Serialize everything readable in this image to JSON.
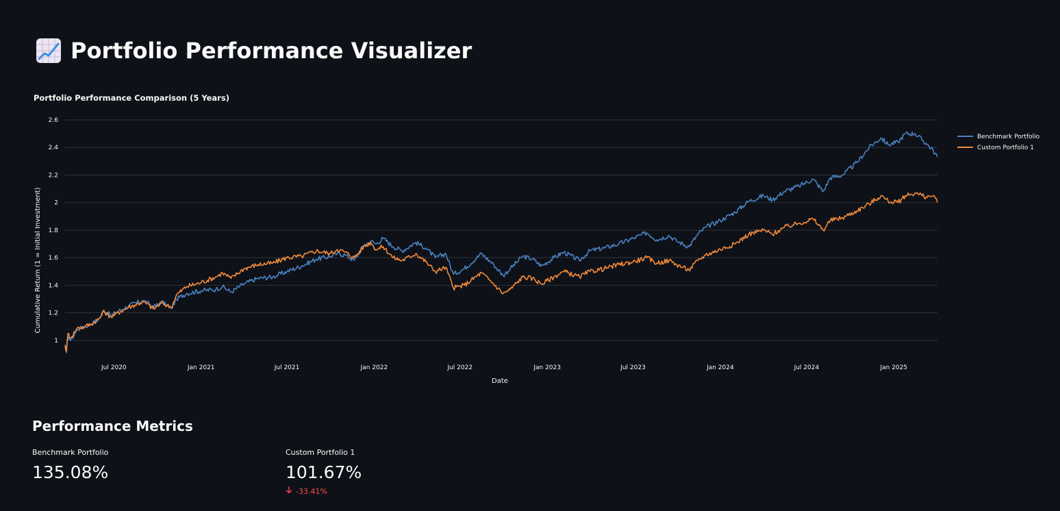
{
  "header": {
    "icon": "chart-increasing-icon",
    "title": "Portfolio Performance Visualizer"
  },
  "chart_data": {
    "type": "line",
    "title": "Portfolio Performance Comparison (5 Years)",
    "xlabel": "Date",
    "ylabel": "Cumulative Return (1 = Initial Investment)",
    "ylim": [
      0.9,
      2.6
    ],
    "xlim": [
      "2020-03-20",
      "2025-04-03"
    ],
    "yticks": [
      1,
      1.2,
      1.4,
      1.6,
      1.8,
      2,
      2.2,
      2.4,
      2.6
    ],
    "xticks": [
      {
        "date": "2020-07-01",
        "label": "Jul 2020"
      },
      {
        "date": "2021-01-01",
        "label": "Jan 2021"
      },
      {
        "date": "2021-07-01",
        "label": "Jul 2021"
      },
      {
        "date": "2022-01-01",
        "label": "Jan 2022"
      },
      {
        "date": "2022-07-01",
        "label": "Jul 2022"
      },
      {
        "date": "2023-01-01",
        "label": "Jan 2023"
      },
      {
        "date": "2023-07-01",
        "label": "Jul 2023"
      },
      {
        "date": "2024-01-01",
        "label": "Jan 2024"
      },
      {
        "date": "2024-07-01",
        "label": "Jul 2024"
      },
      {
        "date": "2025-01-01",
        "label": "Jan 2025"
      }
    ],
    "grid": "horizontal",
    "legend": "top-right",
    "series": [
      {
        "name": "Benchmark Portfolio",
        "color": "#4a82c3",
        "points": [
          [
            "2020-03-20",
            0.97
          ],
          [
            "2020-03-23",
            0.91
          ],
          [
            "2020-03-26",
            1.03
          ],
          [
            "2020-04-01",
            1.0
          ],
          [
            "2020-04-15",
            1.08
          ],
          [
            "2020-05-01",
            1.1
          ],
          [
            "2020-05-15",
            1.12
          ],
          [
            "2020-06-01",
            1.16
          ],
          [
            "2020-06-10",
            1.22
          ],
          [
            "2020-06-25",
            1.18
          ],
          [
            "2020-07-15",
            1.22
          ],
          [
            "2020-08-01",
            1.25
          ],
          [
            "2020-09-01",
            1.29
          ],
          [
            "2020-09-23",
            1.24
          ],
          [
            "2020-10-10",
            1.28
          ],
          [
            "2020-10-30",
            1.23
          ],
          [
            "2020-11-10",
            1.3
          ],
          [
            "2020-12-01",
            1.34
          ],
          [
            "2021-01-01",
            1.36
          ],
          [
            "2021-02-01",
            1.37
          ],
          [
            "2021-02-15",
            1.39
          ],
          [
            "2021-03-05",
            1.35
          ],
          [
            "2021-04-01",
            1.41
          ],
          [
            "2021-05-01",
            1.45
          ],
          [
            "2021-06-01",
            1.46
          ],
          [
            "2021-07-01",
            1.5
          ],
          [
            "2021-08-01",
            1.54
          ],
          [
            "2021-09-01",
            1.59
          ],
          [
            "2021-10-01",
            1.61
          ],
          [
            "2021-10-15",
            1.63
          ],
          [
            "2021-11-01",
            1.62
          ],
          [
            "2021-11-20",
            1.58
          ],
          [
            "2021-12-10",
            1.69
          ],
          [
            "2021-12-25",
            1.72
          ],
          [
            "2022-01-05",
            1.7
          ],
          [
            "2022-01-20",
            1.74
          ],
          [
            "2022-02-10",
            1.68
          ],
          [
            "2022-03-01",
            1.65
          ],
          [
            "2022-03-30",
            1.71
          ],
          [
            "2022-04-20",
            1.67
          ],
          [
            "2022-05-10",
            1.6
          ],
          [
            "2022-06-01",
            1.63
          ],
          [
            "2022-06-17",
            1.48
          ],
          [
            "2022-07-10",
            1.52
          ],
          [
            "2022-08-15",
            1.63
          ],
          [
            "2022-09-10",
            1.55
          ],
          [
            "2022-09-30",
            1.47
          ],
          [
            "2022-10-15",
            1.52
          ],
          [
            "2022-11-10",
            1.61
          ],
          [
            "2022-12-01",
            1.59
          ],
          [
            "2022-12-20",
            1.54
          ],
          [
            "2023-01-15",
            1.6
          ],
          [
            "2023-02-05",
            1.64
          ],
          [
            "2023-03-10",
            1.58
          ],
          [
            "2023-04-01",
            1.65
          ],
          [
            "2023-05-01",
            1.67
          ],
          [
            "2023-06-01",
            1.7
          ],
          [
            "2023-07-01",
            1.74
          ],
          [
            "2023-07-30",
            1.78
          ],
          [
            "2023-08-20",
            1.73
          ],
          [
            "2023-09-15",
            1.76
          ],
          [
            "2023-10-01",
            1.72
          ],
          [
            "2023-10-27",
            1.68
          ],
          [
            "2023-11-15",
            1.77
          ],
          [
            "2023-12-01",
            1.82
          ],
          [
            "2024-01-01",
            1.87
          ],
          [
            "2024-02-01",
            1.93
          ],
          [
            "2024-03-01",
            2.01
          ],
          [
            "2024-04-01",
            2.05
          ],
          [
            "2024-04-20",
            2.02
          ],
          [
            "2024-05-15",
            2.08
          ],
          [
            "2024-06-15",
            2.12
          ],
          [
            "2024-07-15",
            2.17
          ],
          [
            "2024-08-05",
            2.08
          ],
          [
            "2024-08-20",
            2.18
          ],
          [
            "2024-09-15",
            2.2
          ],
          [
            "2024-10-15",
            2.29
          ],
          [
            "2024-11-10",
            2.4
          ],
          [
            "2024-12-05",
            2.47
          ],
          [
            "2024-12-20",
            2.42
          ],
          [
            "2025-01-10",
            2.44
          ],
          [
            "2025-01-25",
            2.5
          ],
          [
            "2025-02-15",
            2.5
          ],
          [
            "2025-03-10",
            2.43
          ],
          [
            "2025-03-25",
            2.38
          ],
          [
            "2025-04-03",
            2.33
          ]
        ]
      },
      {
        "name": "Custom Portfolio 1",
        "color": "#f28a3b",
        "points": [
          [
            "2020-03-20",
            0.96
          ],
          [
            "2020-03-23",
            0.92
          ],
          [
            "2020-03-26",
            1.05
          ],
          [
            "2020-04-01",
            1.02
          ],
          [
            "2020-04-15",
            1.09
          ],
          [
            "2020-05-01",
            1.1
          ],
          [
            "2020-05-15",
            1.12
          ],
          [
            "2020-06-01",
            1.16
          ],
          [
            "2020-06-10",
            1.21
          ],
          [
            "2020-06-25",
            1.17
          ],
          [
            "2020-07-15",
            1.21
          ],
          [
            "2020-08-01",
            1.24
          ],
          [
            "2020-09-01",
            1.28
          ],
          [
            "2020-09-23",
            1.23
          ],
          [
            "2020-10-10",
            1.27
          ],
          [
            "2020-10-30",
            1.24
          ],
          [
            "2020-11-10",
            1.33
          ],
          [
            "2020-12-01",
            1.39
          ],
          [
            "2021-01-01",
            1.42
          ],
          [
            "2021-02-01",
            1.46
          ],
          [
            "2021-02-15",
            1.49
          ],
          [
            "2021-03-05",
            1.45
          ],
          [
            "2021-04-01",
            1.52
          ],
          [
            "2021-05-01",
            1.55
          ],
          [
            "2021-06-01",
            1.56
          ],
          [
            "2021-07-01",
            1.6
          ],
          [
            "2021-08-01",
            1.61
          ],
          [
            "2021-09-01",
            1.65
          ],
          [
            "2021-10-01",
            1.63
          ],
          [
            "2021-10-15",
            1.66
          ],
          [
            "2021-11-01",
            1.64
          ],
          [
            "2021-11-20",
            1.6
          ],
          [
            "2021-12-10",
            1.68
          ],
          [
            "2021-12-25",
            1.71
          ],
          [
            "2022-01-05",
            1.66
          ],
          [
            "2022-01-20",
            1.68
          ],
          [
            "2022-02-10",
            1.6
          ],
          [
            "2022-03-01",
            1.58
          ],
          [
            "2022-03-30",
            1.63
          ],
          [
            "2022-04-20",
            1.57
          ],
          [
            "2022-05-10",
            1.5
          ],
          [
            "2022-06-01",
            1.53
          ],
          [
            "2022-06-17",
            1.38
          ],
          [
            "2022-07-10",
            1.4
          ],
          [
            "2022-08-15",
            1.49
          ],
          [
            "2022-09-10",
            1.41
          ],
          [
            "2022-09-30",
            1.34
          ],
          [
            "2022-10-15",
            1.37
          ],
          [
            "2022-11-10",
            1.46
          ],
          [
            "2022-12-01",
            1.45
          ],
          [
            "2022-12-20",
            1.41
          ],
          [
            "2023-01-15",
            1.46
          ],
          [
            "2023-02-05",
            1.5
          ],
          [
            "2023-03-10",
            1.46
          ],
          [
            "2023-04-01",
            1.5
          ],
          [
            "2023-05-01",
            1.52
          ],
          [
            "2023-06-01",
            1.55
          ],
          [
            "2023-07-01",
            1.57
          ],
          [
            "2023-07-30",
            1.6
          ],
          [
            "2023-08-20",
            1.56
          ],
          [
            "2023-09-15",
            1.58
          ],
          [
            "2023-10-01",
            1.55
          ],
          [
            "2023-10-27",
            1.51
          ],
          [
            "2023-11-15",
            1.58
          ],
          [
            "2023-12-01",
            1.62
          ],
          [
            "2024-01-01",
            1.66
          ],
          [
            "2024-02-01",
            1.7
          ],
          [
            "2024-03-01",
            1.77
          ],
          [
            "2024-04-01",
            1.8
          ],
          [
            "2024-04-20",
            1.77
          ],
          [
            "2024-05-15",
            1.82
          ],
          [
            "2024-06-15",
            1.85
          ],
          [
            "2024-07-15",
            1.88
          ],
          [
            "2024-08-05",
            1.8
          ],
          [
            "2024-08-20",
            1.87
          ],
          [
            "2024-09-15",
            1.89
          ],
          [
            "2024-10-15",
            1.94
          ],
          [
            "2024-11-10",
            1.99
          ],
          [
            "2024-12-05",
            2.05
          ],
          [
            "2024-12-20",
            2.01
          ],
          [
            "2025-01-10",
            2.0
          ],
          [
            "2025-01-25",
            2.05
          ],
          [
            "2025-02-15",
            2.07
          ],
          [
            "2025-03-10",
            2.04
          ],
          [
            "2025-03-25",
            2.05
          ],
          [
            "2025-04-03",
            2.0
          ]
        ]
      }
    ]
  },
  "metrics": {
    "heading": "Performance Metrics",
    "benchmark": {
      "label": "Benchmark Portfolio",
      "value": "135.08%"
    },
    "custom": {
      "label": "Custom Portfolio 1",
      "value": "101.67%",
      "delta": "-33.41%",
      "delta_color": "#ff4b4b",
      "delta_icon": "arrow-down-icon"
    }
  }
}
